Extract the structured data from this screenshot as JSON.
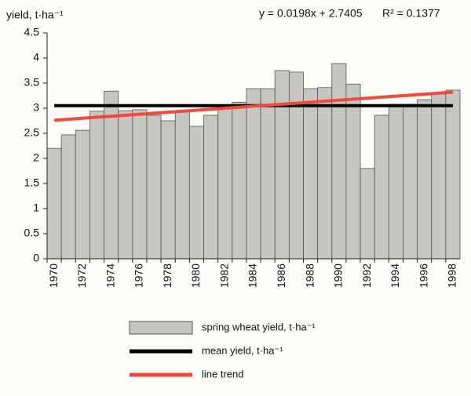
{
  "chart_data": {
    "type": "bar",
    "y_label": "yield, t·ha⁻¹",
    "equation": "y = 0.0198x + 2.7405",
    "r_squared": "R² = 0.1377",
    "categories": [
      "1970",
      null,
      "1972",
      null,
      "1974",
      null,
      "1976",
      null,
      "1978",
      null,
      "1980",
      null,
      "1982",
      null,
      "1984",
      null,
      "1986",
      null,
      "1988",
      null,
      "1990",
      null,
      "1992",
      null,
      "1994",
      null,
      "1996",
      null,
      "1998"
    ],
    "series": [
      {
        "name": "spring wheat yield, t·ha⁻¹",
        "color": "#c8c6c2",
        "kind": "bar",
        "values": [
          2.2,
          2.47,
          2.56,
          2.94,
          3.34,
          2.95,
          2.97,
          2.86,
          2.75,
          2.93,
          2.64,
          2.86,
          3.05,
          3.12,
          3.39,
          3.39,
          3.75,
          3.72,
          3.39,
          3.41,
          3.89,
          3.48,
          1.8,
          2.86,
          3.08,
          3.08,
          3.17,
          3.28,
          3.36
        ]
      },
      {
        "name": "mean yield, t·ha⁻¹",
        "color": "#000000",
        "kind": "line",
        "values": [
          3.05,
          3.05,
          3.05,
          3.05,
          3.05,
          3.05,
          3.05,
          3.05,
          3.05,
          3.05,
          3.05,
          3.05,
          3.05,
          3.05,
          3.05,
          3.05,
          3.05,
          3.05,
          3.05,
          3.05,
          3.05,
          3.05,
          3.05,
          3.05,
          3.05,
          3.05,
          3.05,
          3.05,
          3.05
        ]
      },
      {
        "name": "line trend",
        "color": "#f04a3a",
        "kind": "line",
        "values": [
          2.76,
          2.78,
          2.8,
          2.82,
          2.84,
          2.86,
          2.88,
          2.9,
          2.92,
          2.94,
          2.96,
          2.98,
          3.0,
          3.02,
          3.04,
          3.06,
          3.08,
          3.1,
          3.12,
          3.14,
          3.16,
          3.18,
          3.2,
          3.22,
          3.24,
          3.26,
          3.28,
          3.3,
          3.32
        ]
      }
    ],
    "ylim": [
      0,
      4.5
    ],
    "yticks": [
      0,
      0.5,
      1,
      1.5,
      2,
      2.5,
      3,
      3.5,
      4,
      4.5
    ],
    "grid": false
  }
}
